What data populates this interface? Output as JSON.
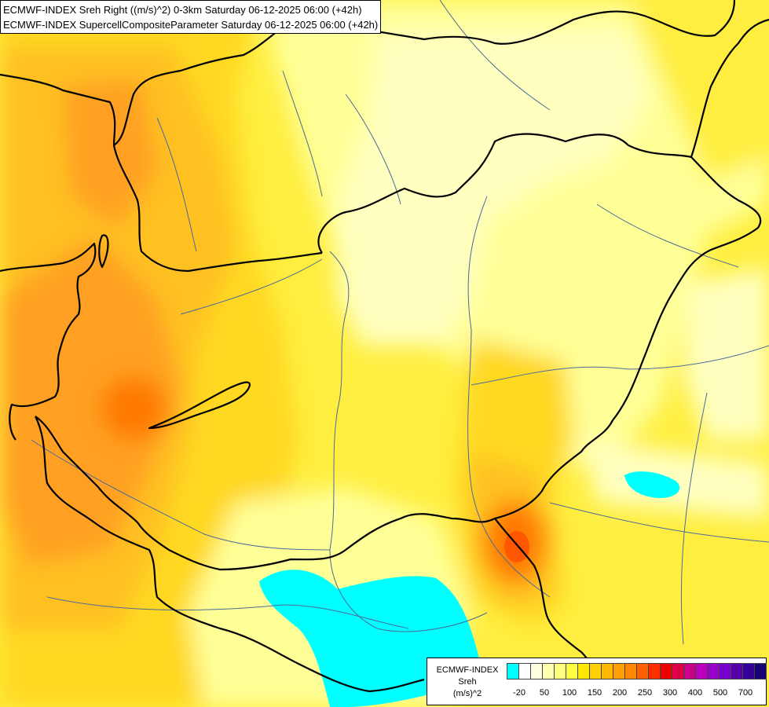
{
  "title": {
    "line1": "ECMWF-INDEX Sreh Right ((m/s)^2) 0-3km Saturday 06-12-2025 06:00 (+42h)",
    "line2": "ECMWF-INDEX SupercellCompositeParameter Saturday 06-12-2025 06:00 (+42h)"
  },
  "legend": {
    "line1": "ECMWF-INDEX",
    "line2": "Sreh",
    "line3": "(m/s)^2",
    "colors": [
      "#00ffff",
      "#ffffff",
      "#ffffe0",
      "#ffffb0",
      "#ffff80",
      "#ffff40",
      "#ffe800",
      "#ffd000",
      "#ffb800",
      "#ffa000",
      "#ff8800",
      "#ff6000",
      "#ff3000",
      "#ee0000",
      "#dd0044",
      "#cc0088",
      "#bb00bb",
      "#9900cc",
      "#7700cc",
      "#5500aa",
      "#330099",
      "#1a0077"
    ],
    "ticks": [
      "-20",
      "50",
      "100",
      "150",
      "200",
      "250",
      "300",
      "400",
      "500",
      "700"
    ]
  },
  "map": {
    "colors": {
      "light": "#ffffc0",
      "pale": "#ffff98",
      "yellow": "#ffee40",
      "gold": "#ffd820",
      "amber": "#ffc020",
      "orange": "#ffa020",
      "dark_orange": "#ff7800",
      "red_orange": "#ff5000",
      "cyan": "#00ffff",
      "border": "#000000",
      "river": "#4a6a9a"
    }
  }
}
